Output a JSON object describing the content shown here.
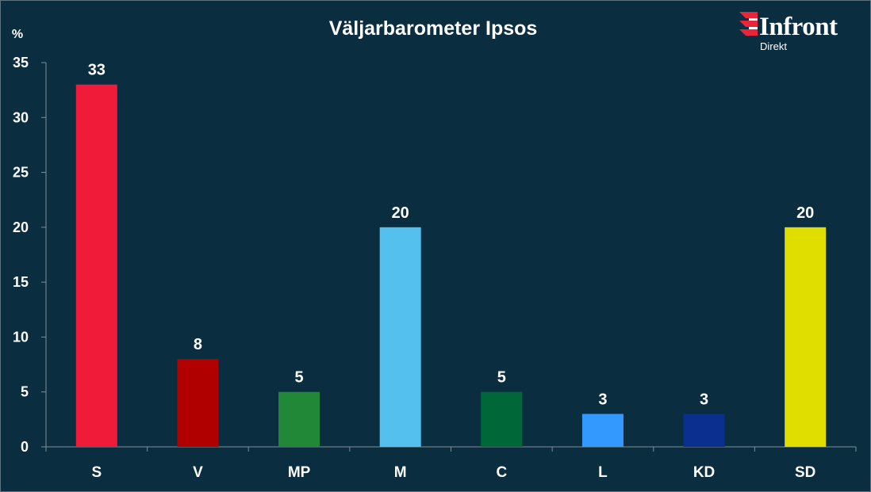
{
  "brand": {
    "name": "Infront",
    "sub": "Direkt",
    "colors": {
      "mark_red": "#e8253a",
      "mark_white": "#ffffff"
    }
  },
  "chart_data": {
    "type": "bar",
    "title": "Väljarbarometer Ipsos",
    "ylabel": "%",
    "xlabel": "",
    "ylim": [
      0,
      35
    ],
    "yticks": [
      0,
      5,
      10,
      15,
      20,
      25,
      30,
      35
    ],
    "grid": false,
    "legend": "none",
    "categories": [
      "S",
      "V",
      "MP",
      "M",
      "C",
      "L",
      "KD",
      "SD"
    ],
    "values": [
      33,
      8,
      5,
      20,
      5,
      3,
      3,
      20
    ],
    "colors": [
      "#ef1b39",
      "#b00000",
      "#218838",
      "#54c0ee",
      "#006838",
      "#3399ff",
      "#0b2f8f",
      "#e0de00"
    ],
    "background": "#0b2d40"
  }
}
